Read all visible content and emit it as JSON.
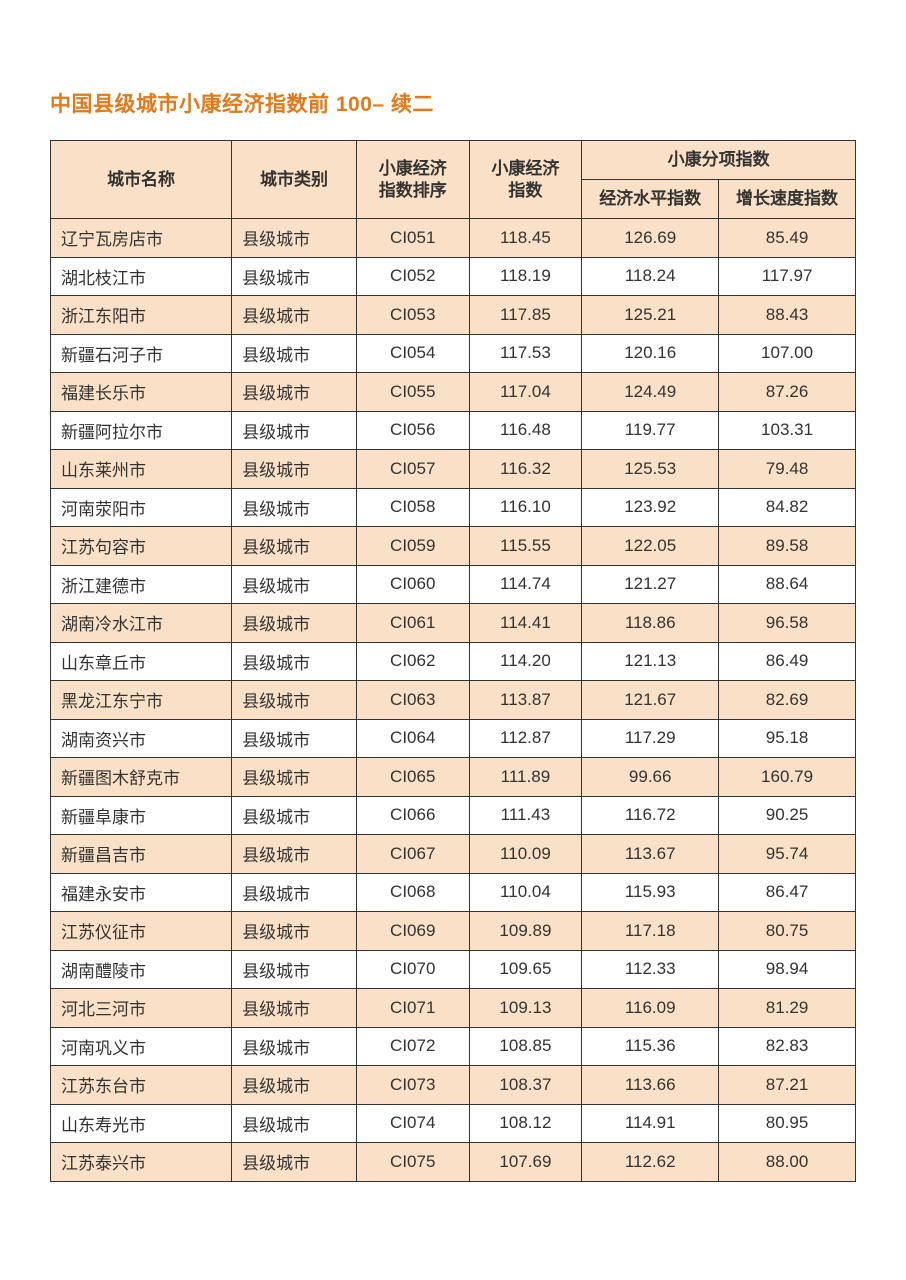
{
  "title": "中国县级城市小康经济指数前 100– 续二",
  "table": {
    "header": {
      "city_name": "城市名称",
      "city_type": "城市类别",
      "rank": "小康经济\n指数排序",
      "index": "小康经济\n指数",
      "sub_group": "小康分项指数",
      "econ_level": "经济水平指数",
      "growth_rate": "增长速度指数"
    },
    "colors": {
      "header_bg": "#f9e0c7",
      "row_odd_bg": "#f9e0c7",
      "row_even_bg": "#ffffff",
      "border": "#333333",
      "title_color": "#e67817",
      "text_color": "#333333"
    },
    "rows": [
      {
        "name": "辽宁瓦房店市",
        "type": "县级城市",
        "rank": "CI051",
        "idx": "118.45",
        "lvl": "126.69",
        "grw": "85.49"
      },
      {
        "name": "湖北枝江市",
        "type": "县级城市",
        "rank": "CI052",
        "idx": "118.19",
        "lvl": "118.24",
        "grw": "117.97"
      },
      {
        "name": "浙江东阳市",
        "type": "县级城市",
        "rank": "CI053",
        "idx": "117.85",
        "lvl": "125.21",
        "grw": "88.43"
      },
      {
        "name": "新疆石河子市",
        "type": "县级城市",
        "rank": "CI054",
        "idx": "117.53",
        "lvl": "120.16",
        "grw": "107.00"
      },
      {
        "name": "福建长乐市",
        "type": "县级城市",
        "rank": "CI055",
        "idx": "117.04",
        "lvl": "124.49",
        "grw": "87.26"
      },
      {
        "name": "新疆阿拉尔市",
        "type": "县级城市",
        "rank": "CI056",
        "idx": "116.48",
        "lvl": "119.77",
        "grw": "103.31"
      },
      {
        "name": "山东莱州市",
        "type": "县级城市",
        "rank": "CI057",
        "idx": "116.32",
        "lvl": "125.53",
        "grw": "79.48"
      },
      {
        "name": "河南荥阳市",
        "type": "县级城市",
        "rank": "CI058",
        "idx": "116.10",
        "lvl": "123.92",
        "grw": "84.82"
      },
      {
        "name": "江苏句容市",
        "type": "县级城市",
        "rank": "CI059",
        "idx": "115.55",
        "lvl": "122.05",
        "grw": "89.58"
      },
      {
        "name": "浙江建德市",
        "type": "县级城市",
        "rank": "CI060",
        "idx": "114.74",
        "lvl": "121.27",
        "grw": "88.64"
      },
      {
        "name": "湖南冷水江市",
        "type": "县级城市",
        "rank": "CI061",
        "idx": "114.41",
        "lvl": "118.86",
        "grw": "96.58"
      },
      {
        "name": "山东章丘市",
        "type": "县级城市",
        "rank": "CI062",
        "idx": "114.20",
        "lvl": "121.13",
        "grw": "86.49"
      },
      {
        "name": "黑龙江东宁市",
        "type": "县级城市",
        "rank": "CI063",
        "idx": "113.87",
        "lvl": "121.67",
        "grw": "82.69"
      },
      {
        "name": "湖南资兴市",
        "type": "县级城市",
        "rank": "CI064",
        "idx": "112.87",
        "lvl": "117.29",
        "grw": "95.18"
      },
      {
        "name": "新疆图木舒克市",
        "type": "县级城市",
        "rank": "CI065",
        "idx": "111.89",
        "lvl": "99.66",
        "grw": "160.79"
      },
      {
        "name": "新疆阜康市",
        "type": "县级城市",
        "rank": "CI066",
        "idx": "111.43",
        "lvl": "116.72",
        "grw": "90.25"
      },
      {
        "name": "新疆昌吉市",
        "type": "县级城市",
        "rank": "CI067",
        "idx": "110.09",
        "lvl": "113.67",
        "grw": "95.74"
      },
      {
        "name": "福建永安市",
        "type": "县级城市",
        "rank": "CI068",
        "idx": "110.04",
        "lvl": "115.93",
        "grw": "86.47"
      },
      {
        "name": "江苏仪征市",
        "type": "县级城市",
        "rank": "CI069",
        "idx": "109.89",
        "lvl": "117.18",
        "grw": "80.75"
      },
      {
        "name": "湖南醴陵市",
        "type": "县级城市",
        "rank": "CI070",
        "idx": "109.65",
        "lvl": "112.33",
        "grw": "98.94"
      },
      {
        "name": "河北三河市",
        "type": "县级城市",
        "rank": "CI071",
        "idx": "109.13",
        "lvl": "116.09",
        "grw": "81.29"
      },
      {
        "name": "河南巩义市",
        "type": "县级城市",
        "rank": "CI072",
        "idx": "108.85",
        "lvl": "115.36",
        "grw": "82.83"
      },
      {
        "name": "江苏东台市",
        "type": "县级城市",
        "rank": "CI073",
        "idx": "108.37",
        "lvl": "113.66",
        "grw": "87.21"
      },
      {
        "name": "山东寿光市",
        "type": "县级城市",
        "rank": "CI074",
        "idx": "108.12",
        "lvl": "114.91",
        "grw": "80.95"
      },
      {
        "name": "江苏泰兴市",
        "type": "县级城市",
        "rank": "CI075",
        "idx": "107.69",
        "lvl": "112.62",
        "grw": "88.00"
      }
    ]
  }
}
